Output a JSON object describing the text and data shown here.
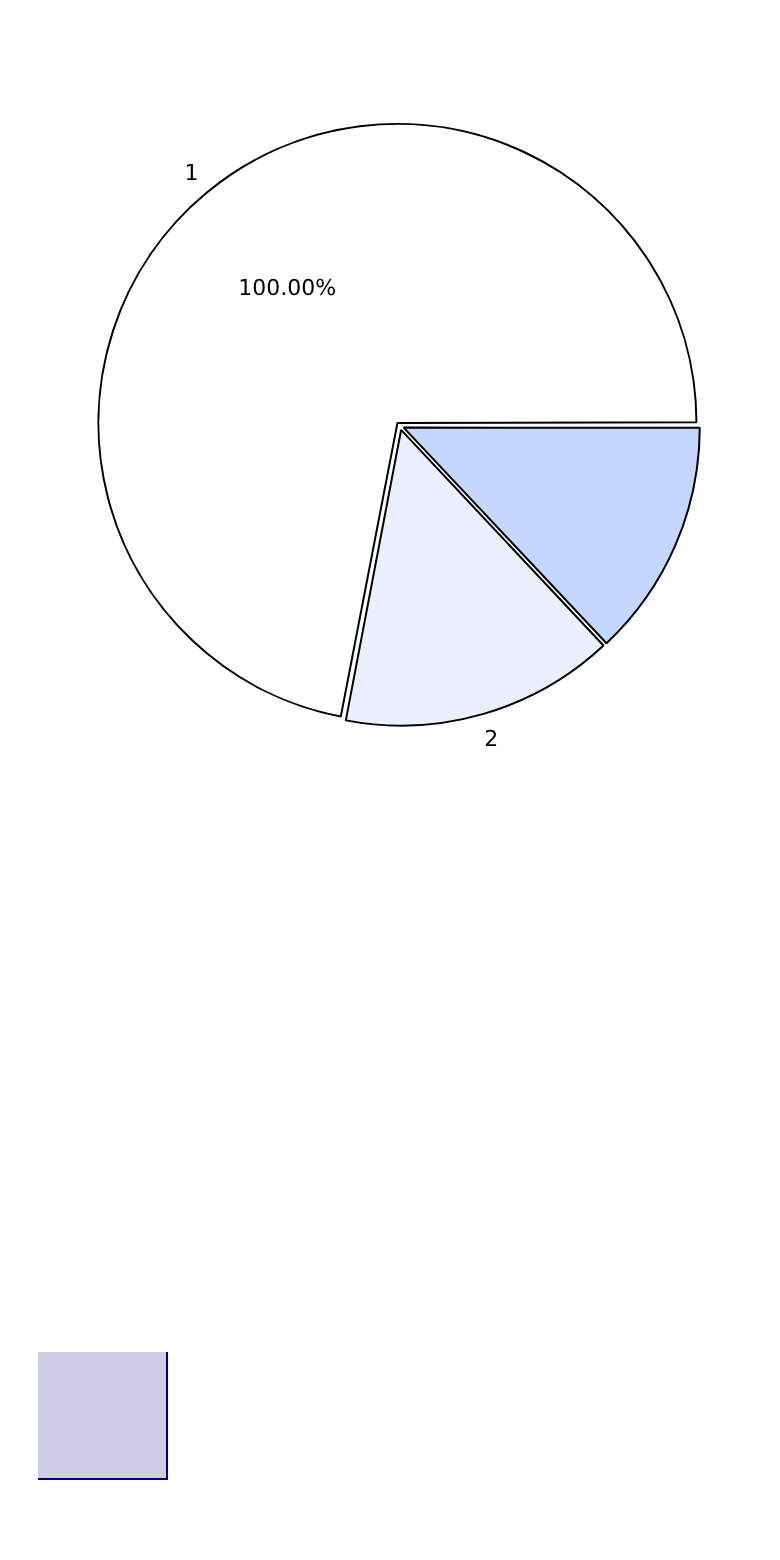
{
  "chart_data": {
    "type": "pie",
    "categories": [
      null,
      "2",
      "1"
    ],
    "values": [
      13,
      15,
      72
    ],
    "colors": [
      "#c4d8ff",
      "#eaf0ff",
      "#ffffff"
    ],
    "annotations": [
      "100.00%"
    ],
    "legend": false
  }
}
